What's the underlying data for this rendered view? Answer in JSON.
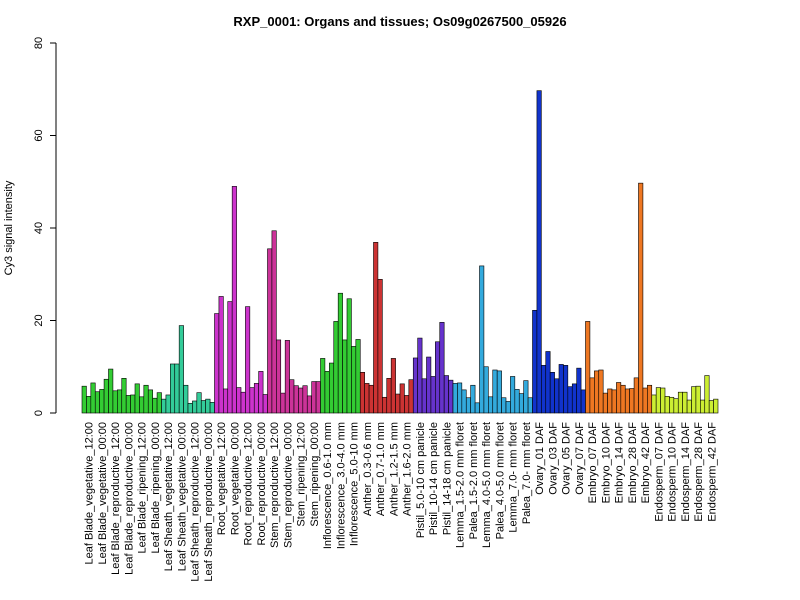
{
  "chart_data": {
    "type": "bar",
    "title": "RXP_0001: Organs and tissues; Os09g0267500_05926",
    "xlabel": "",
    "ylabel": "Cy3 signal intensity",
    "ylim": [
      0,
      80
    ],
    "yticks": [
      0,
      20,
      40,
      60,
      80
    ],
    "grid": false,
    "labels": [
      "Leaf Blade_vegetative_12:00",
      "Leaf Blade_vegetative_00:00",
      "Leaf Blade_reproductive_12:00",
      "Leaf Blade_reproductive_00:00",
      "Leaf Blade_ripening_12:00",
      "Leaf Blade_ripening_00:00",
      "Leaf Sheath_vegetative_12:00",
      "Leaf Sheath_vegetative_00:00",
      "Leaf Sheath_reproductive_12:00",
      "Leaf Sheath_reproductive_00:00",
      "Root_vegetative_12:00",
      "Root_vegetative_00:00",
      "Root_reproductive_12:00",
      "Root_reproductive_00:00",
      "Stem_reproductive_12:00",
      "Stem_reproductive_00:00",
      "Stem_ripening_12:00",
      "Stem_ripening_00:00",
      "Inflorescence_0.6-1.0 mm",
      "Inflorescence_3.0-4.0 mm",
      "Inflorescence_5.0-10 mm",
      "Anther_0.3-0.6 mm",
      "Anther_0.7-1.0 mm",
      "Anther_1.2-1.5 mm",
      "Anther_1.6-2.0 mm",
      "Pistil_5.0-10 cm panicle",
      "Pistil_10-14 cm panicle",
      "Pistil_14-18 cm panicle",
      "Lemma_1.5-2.0 mm floret",
      "Palea_1.5-2.0 mm floret",
      "Lemma_4.0-5.0 mm floret",
      "Palea_4.0-5.0 mm floret",
      "Lemma_7.0- mm floret",
      "Palea_7.0- mm floret",
      "Ovary_01 DAF",
      "Ovary_03 DAF",
      "Ovary_05 DAF",
      "Ovary_07 DAF",
      "Embryo_07 DAF",
      "Embryo_10 DAF",
      "Embryo_14 DAF",
      "Embryo_28 DAF",
      "Embryo_42 DAF",
      "Endosperm_07 DAF",
      "Endosperm_10 DAF",
      "Endosperm_14 DAF",
      "Endosperm_28 DAF",
      "Endosperm_42 DAF"
    ],
    "groups": [
      {
        "colors": [
          "#33cc33"
        ],
        "values": [
          5.8,
          3.6,
          6.5
        ]
      },
      {
        "colors": [
          "#33cc33"
        ],
        "values": [
          4.6,
          5.1,
          7.3
        ]
      },
      {
        "colors": [
          "#33cc33"
        ],
        "values": [
          9.5,
          4.8,
          5.0
        ]
      },
      {
        "colors": [
          "#33cc33"
        ],
        "values": [
          7.5,
          3.8,
          3.9
        ]
      },
      {
        "colors": [
          "#33cc33"
        ],
        "values": [
          6.3,
          3.5,
          6.0
        ]
      },
      {
        "colors": [
          "#33cc33"
        ],
        "values": [
          5.0,
          3.2,
          4.4
        ]
      },
      {
        "colors": [
          "#33cc99"
        ],
        "values": [
          3.0,
          3.9,
          10.6
        ]
      },
      {
        "colors": [
          "#33cc99"
        ],
        "values": [
          10.6,
          18.9,
          6.0
        ]
      },
      {
        "colors": [
          "#33cc99"
        ],
        "values": [
          2.1,
          2.6,
          4.4
        ]
      },
      {
        "colors": [
          "#33cc99"
        ],
        "values": [
          2.7,
          3.0,
          2.3
        ]
      },
      {
        "colors": [
          "#cc33cc"
        ],
        "values": [
          21.5,
          25.2,
          5.2
        ]
      },
      {
        "colors": [
          "#cc33cc"
        ],
        "values": [
          24.1,
          49.0,
          5.5
        ]
      },
      {
        "colors": [
          "#cc33cc"
        ],
        "values": [
          4.5,
          23.0,
          5.5
        ]
      },
      {
        "colors": [
          "#cc33cc"
        ],
        "values": [
          6.4,
          9.0,
          4.0
        ]
      },
      {
        "colors": [
          "#cc3399"
        ],
        "values": [
          35.5,
          39.4,
          15.8
        ]
      },
      {
        "colors": [
          "#cc3399"
        ],
        "values": [
          4.3,
          15.7,
          7.2
        ]
      },
      {
        "colors": [
          "#cc3399"
        ],
        "values": [
          5.9,
          5.4,
          5.9
        ]
      },
      {
        "colors": [
          "#cc3399"
        ],
        "values": [
          3.7,
          6.8,
          6.8
        ]
      },
      {
        "colors": [
          "#33cc33"
        ],
        "values": [
          11.8,
          9.0,
          10.8
        ]
      },
      {
        "colors": [
          "#33cc33"
        ],
        "values": [
          19.8,
          25.9,
          15.8
        ]
      },
      {
        "colors": [
          "#33cc33"
        ],
        "values": [
          24.7,
          14.4,
          15.9
        ]
      },
      {
        "colors": [
          "#cc3333"
        ],
        "values": [
          8.8,
          6.4,
          6.0
        ]
      },
      {
        "colors": [
          "#cc3333"
        ],
        "values": [
          36.9,
          28.9,
          3.4
        ]
      },
      {
        "colors": [
          "#cc3333"
        ],
        "values": [
          7.5,
          11.8,
          4.1
        ]
      },
      {
        "colors": [
          "#cc3333"
        ],
        "values": [
          6.3,
          3.8,
          7.2
        ]
      },
      {
        "colors": [
          "#6633cc"
        ],
        "values": [
          11.9,
          16.2,
          7.4
        ]
      },
      {
        "colors": [
          "#6633cc"
        ],
        "values": [
          12.1,
          7.9,
          15.4
        ]
      },
      {
        "colors": [
          "#6633cc"
        ],
        "values": [
          19.6,
          8.1,
          7.1
        ]
      },
      {
        "colors": [
          "#33aadd"
        ],
        "values": [
          6.4,
          6.5,
          5.0
        ]
      },
      {
        "colors": [
          "#33aadd"
        ],
        "values": [
          3.3,
          6.0,
          2.2
        ]
      },
      {
        "colors": [
          "#33aadd"
        ],
        "values": [
          31.8,
          10.0,
          3.5
        ]
      },
      {
        "colors": [
          "#33aadd"
        ],
        "values": [
          9.3,
          9.1,
          3.3
        ]
      },
      {
        "colors": [
          "#33aadd"
        ],
        "values": [
          2.5,
          7.9,
          5.1
        ]
      },
      {
        "colors": [
          "#33aadd"
        ],
        "values": [
          4.2,
          7.0,
          3.3
        ]
      },
      {
        "colors": [
          "#1133cc"
        ],
        "values": [
          22.2,
          69.7,
          10.3
        ]
      },
      {
        "colors": [
          "#1133cc"
        ],
        "values": [
          13.3,
          8.8,
          7.4
        ]
      },
      {
        "colors": [
          "#1133cc"
        ],
        "values": [
          10.5,
          10.3,
          5.7
        ]
      },
      {
        "colors": [
          "#1133cc"
        ],
        "values": [
          6.3,
          9.7,
          5.0
        ]
      },
      {
        "colors": [
          "#ee7722"
        ],
        "values": [
          19.8,
          7.6,
          9.1
        ]
      },
      {
        "colors": [
          "#ee7722"
        ],
        "values": [
          9.3,
          4.3,
          5.2
        ]
      },
      {
        "colors": [
          "#ee7722"
        ],
        "values": [
          5.0,
          6.6,
          6.0
        ]
      },
      {
        "colors": [
          "#ee7722"
        ],
        "values": [
          5.2,
          5.3,
          7.6
        ]
      },
      {
        "colors": [
          "#ee7722"
        ],
        "values": [
          49.7,
          5.4,
          6.0
        ]
      },
      {
        "colors": [
          "#ccee33"
        ],
        "values": [
          3.9,
          5.5,
          5.4
        ]
      },
      {
        "colors": [
          "#ccee33"
        ],
        "values": [
          3.6,
          3.4,
          3.1
        ]
      },
      {
        "colors": [
          "#ccee33"
        ],
        "values": [
          4.5,
          4.5,
          2.8
        ]
      },
      {
        "colors": [
          "#ccee33"
        ],
        "values": [
          5.7,
          5.8,
          2.8
        ]
      },
      {
        "colors": [
          "#ccee33"
        ],
        "values": [
          8.1,
          2.7,
          3.0
        ]
      }
    ]
  }
}
